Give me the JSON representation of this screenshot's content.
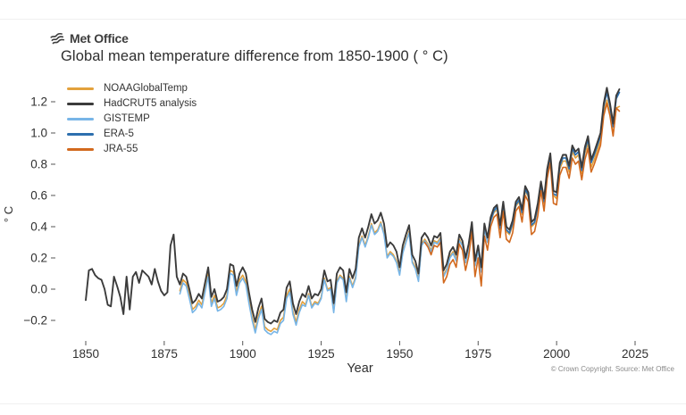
{
  "header": {
    "logo_text": "Met Office",
    "title": "Global mean temperature difference from 1850-1900 ( ° C)"
  },
  "footer": {
    "copyright": "© Crown Copyright. Source: Met Office"
  },
  "chart_data": {
    "type": "line",
    "title": "Global mean temperature difference from 1850-1900 ( ° C)",
    "xlabel": "Year",
    "ylabel": "° C",
    "xlim": [
      1843,
      2029
    ],
    "ylim": [
      -0.33,
      1.36
    ],
    "grid": false,
    "legend_position": "upper-left",
    "x_axis": {
      "label": "Year",
      "ticks": [
        1850,
        1875,
        1900,
        1925,
        1950,
        1975,
        2000,
        2025
      ],
      "tick_labels": [
        "1850",
        "1875",
        "1900",
        "1925",
        "1950",
        "1975",
        "2000",
        "2025"
      ]
    },
    "y_axis": {
      "label": "° C",
      "ticks": [
        1.2,
        1.0,
        0.8,
        0.6,
        0.4,
        0.2,
        0.0,
        -0.2
      ],
      "tick_labels": [
        "1.2",
        "1.0",
        "0.8",
        "0.6",
        "0.4",
        "0.2",
        "0.0",
        "−0.2"
      ]
    },
    "series": [
      {
        "name": "NOAAGlobalTemp",
        "color": "#E3A13C",
        "start_year": 1880,
        "values": [
          -0.01,
          0.06,
          0.04,
          -0.04,
          -0.13,
          -0.11,
          -0.07,
          -0.1,
          0.0,
          0.1,
          -0.09,
          -0.04,
          -0.12,
          -0.11,
          -0.09,
          -0.04,
          0.12,
          0.11,
          -0.02,
          0.06,
          0.09,
          0.05,
          -0.07,
          -0.18,
          -0.26,
          -0.17,
          -0.11,
          -0.24,
          -0.26,
          -0.27,
          -0.25,
          -0.26,
          -0.2,
          -0.18,
          -0.04,
          0.0,
          -0.14,
          -0.21,
          -0.13,
          -0.08,
          -0.1,
          -0.03,
          -0.11,
          -0.08,
          -0.09,
          -0.05,
          0.07,
          0.0,
          0.01,
          -0.14,
          0.05,
          0.09,
          0.07,
          -0.07,
          0.08,
          0.02,
          0.08,
          0.28,
          0.34,
          0.28,
          0.34,
          0.42,
          0.36,
          0.38,
          0.43,
          0.36,
          0.21,
          0.24,
          0.22,
          0.18,
          0.1,
          0.24,
          0.31,
          0.37,
          0.18,
          0.14,
          0.06,
          0.29,
          0.32,
          0.29,
          0.25,
          0.31,
          0.3,
          0.33,
          0.09,
          0.13,
          0.21,
          0.24,
          0.19,
          0.32,
          0.28,
          0.17,
          0.26,
          0.4,
          0.15,
          0.25,
          0.11,
          0.39,
          0.3,
          0.43,
          0.49,
          0.51,
          0.38,
          0.53,
          0.37,
          0.35,
          0.41,
          0.53,
          0.56,
          0.48,
          0.63,
          0.59,
          0.4,
          0.42,
          0.52,
          0.66,
          0.55,
          0.74,
          0.84,
          0.6,
          0.58,
          0.77,
          0.82,
          0.82,
          0.75,
          0.88,
          0.84,
          0.86,
          0.74,
          0.87,
          0.93,
          0.78,
          0.83,
          0.89,
          0.95,
          1.13,
          1.21,
          1.12,
          0.99,
          1.16,
          1.17
        ]
      },
      {
        "name": "HadCRUT5 analysis",
        "color": "#3B3B3B",
        "start_year": 1850,
        "values": [
          -0.07,
          0.12,
          0.13,
          0.09,
          0.07,
          0.06,
          0.0,
          -0.1,
          -0.11,
          0.08,
          0.02,
          -0.05,
          -0.16,
          0.08,
          -0.13,
          0.08,
          0.11,
          0.04,
          0.12,
          0.1,
          0.08,
          0.03,
          0.13,
          0.05,
          -0.01,
          -0.04,
          -0.02,
          0.28,
          0.35,
          0.08,
          0.03,
          0.1,
          0.08,
          0.0,
          -0.09,
          -0.07,
          -0.03,
          -0.06,
          0.04,
          0.14,
          -0.05,
          0.0,
          -0.08,
          -0.07,
          -0.05,
          0.0,
          0.16,
          0.15,
          0.02,
          0.1,
          0.14,
          0.1,
          -0.02,
          -0.13,
          -0.21,
          -0.12,
          -0.06,
          -0.19,
          -0.21,
          -0.22,
          -0.2,
          -0.21,
          -0.15,
          -0.13,
          0.01,
          0.05,
          -0.09,
          -0.16,
          -0.08,
          -0.03,
          -0.05,
          0.02,
          -0.06,
          -0.03,
          -0.04,
          0.0,
          0.12,
          0.05,
          0.06,
          -0.09,
          0.1,
          0.14,
          0.12,
          -0.02,
          0.13,
          0.07,
          0.13,
          0.33,
          0.39,
          0.33,
          0.4,
          0.48,
          0.42,
          0.44,
          0.49,
          0.42,
          0.27,
          0.3,
          0.28,
          0.24,
          0.14,
          0.28,
          0.35,
          0.41,
          0.22,
          0.18,
          0.1,
          0.33,
          0.36,
          0.33,
          0.28,
          0.34,
          0.33,
          0.36,
          0.12,
          0.16,
          0.24,
          0.27,
          0.22,
          0.35,
          0.31,
          0.2,
          0.29,
          0.43,
          0.18,
          0.28,
          0.14,
          0.42,
          0.33,
          0.46,
          0.52,
          0.54,
          0.41,
          0.56,
          0.4,
          0.38,
          0.44,
          0.56,
          0.59,
          0.51,
          0.66,
          0.62,
          0.43,
          0.45,
          0.55,
          0.69,
          0.58,
          0.77,
          0.87,
          0.63,
          0.62,
          0.81,
          0.86,
          0.86,
          0.79,
          0.92,
          0.88,
          0.9,
          0.78,
          0.91,
          0.98,
          0.83,
          0.88,
          0.94,
          1.0,
          1.19,
          1.29,
          1.19,
          1.06,
          1.24,
          1.28
        ]
      },
      {
        "name": "GISTEMP",
        "color": "#77B5E7",
        "start_year": 1880,
        "values": [
          -0.03,
          0.04,
          0.02,
          -0.06,
          -0.15,
          -0.13,
          -0.09,
          -0.12,
          -0.02,
          0.08,
          -0.11,
          -0.06,
          -0.14,
          -0.13,
          -0.11,
          -0.06,
          0.1,
          0.09,
          -0.04,
          0.04,
          0.07,
          0.03,
          -0.09,
          -0.2,
          -0.28,
          -0.19,
          -0.13,
          -0.26,
          -0.28,
          -0.29,
          -0.27,
          -0.28,
          -0.22,
          -0.2,
          -0.06,
          -0.02,
          -0.16,
          -0.23,
          -0.15,
          -0.1,
          -0.11,
          -0.04,
          -0.12,
          -0.09,
          -0.1,
          -0.06,
          0.06,
          -0.01,
          0.0,
          -0.15,
          0.04,
          0.08,
          0.06,
          -0.08,
          0.07,
          0.01,
          0.07,
          0.27,
          0.33,
          0.27,
          0.33,
          0.41,
          0.35,
          0.37,
          0.42,
          0.35,
          0.2,
          0.23,
          0.21,
          0.17,
          0.09,
          0.23,
          0.3,
          0.36,
          0.17,
          0.13,
          0.05,
          0.28,
          0.31,
          0.28,
          0.24,
          0.3,
          0.29,
          0.32,
          0.08,
          0.12,
          0.2,
          0.23,
          0.18,
          0.31,
          0.28,
          0.17,
          0.26,
          0.4,
          0.15,
          0.25,
          0.11,
          0.39,
          0.3,
          0.43,
          0.5,
          0.52,
          0.39,
          0.54,
          0.38,
          0.36,
          0.42,
          0.54,
          0.57,
          0.49,
          0.64,
          0.6,
          0.41,
          0.43,
          0.53,
          0.67,
          0.56,
          0.75,
          0.85,
          0.61,
          0.6,
          0.79,
          0.84,
          0.84,
          0.77,
          0.9,
          0.86,
          0.88,
          0.76,
          0.89,
          0.96,
          0.81,
          0.86,
          0.92,
          0.98,
          1.17,
          1.27,
          1.17,
          1.04,
          1.22,
          1.26
        ]
      },
      {
        "name": "ERA-5",
        "color": "#2D6FAE",
        "start_year": 1979,
        "values": [
          0.44,
          0.5,
          0.53,
          0.39,
          0.55,
          0.38,
          0.36,
          0.42,
          0.54,
          0.57,
          0.49,
          0.64,
          0.6,
          0.41,
          0.43,
          0.53,
          0.67,
          0.56,
          0.75,
          0.85,
          0.61,
          0.6,
          0.79,
          0.84,
          0.84,
          0.77,
          0.9,
          0.86,
          0.88,
          0.76,
          0.89,
          0.96,
          0.81,
          0.86,
          0.92,
          0.98,
          1.17,
          1.26,
          1.17,
          1.04,
          1.22,
          1.26
        ]
      },
      {
        "name": "JRA-55",
        "color": "#D2691E",
        "start_year": 1958,
        "values": [
          0.3,
          0.27,
          0.22,
          0.28,
          0.27,
          0.3,
          0.04,
          0.08,
          0.16,
          0.19,
          0.14,
          0.29,
          0.25,
          0.12,
          0.21,
          0.37,
          0.08,
          0.2,
          0.02,
          0.34,
          0.25,
          0.4,
          0.46,
          0.48,
          0.33,
          0.5,
          0.32,
          0.3,
          0.36,
          0.5,
          0.53,
          0.43,
          0.6,
          0.56,
          0.35,
          0.37,
          0.47,
          0.63,
          0.5,
          0.71,
          0.81,
          0.55,
          0.54,
          0.73,
          0.78,
          0.78,
          0.71,
          0.84,
          0.8,
          0.82,
          0.7,
          0.83,
          0.9,
          0.75,
          0.8,
          0.86,
          0.92,
          1.11,
          1.19,
          1.11,
          0.98,
          1.16,
          1.14
        ]
      }
    ]
  }
}
